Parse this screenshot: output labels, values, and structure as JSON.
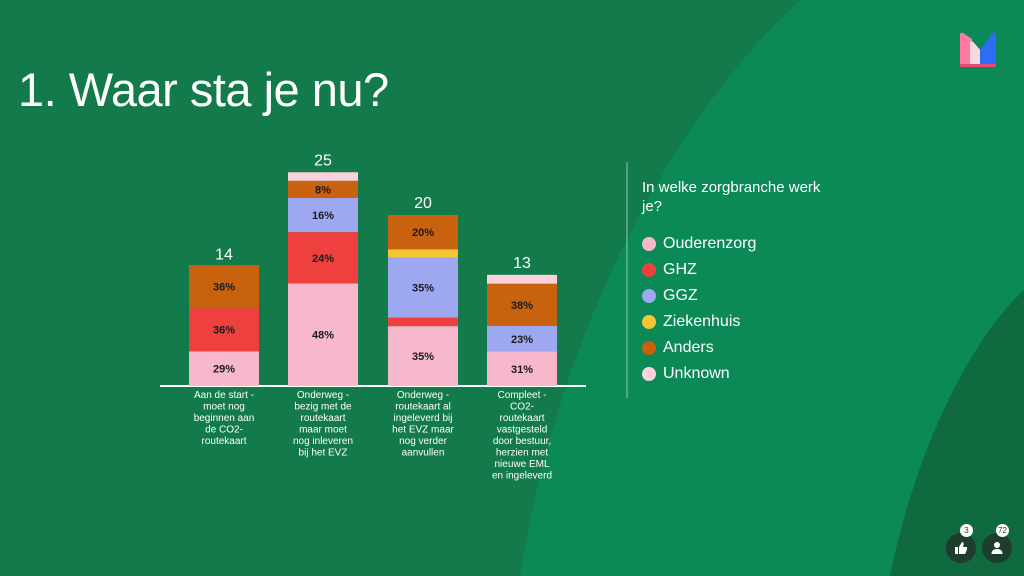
{
  "slide": {
    "title": "1. Waar sta je nu?"
  },
  "colors": {
    "background": "#137a4b",
    "background_light": "#0b8a57",
    "background_dark": "#0f6a3f"
  },
  "legend": {
    "title": "In welke zorgbranche werk je?",
    "items": [
      {
        "label": "Ouderenzorg",
        "color": "#f8b8cc"
      },
      {
        "label": "GHZ",
        "color": "#ef4040"
      },
      {
        "label": "GGZ",
        "color": "#9ea8f0"
      },
      {
        "label": "Ziekenhuis",
        "color": "#f4c534"
      },
      {
        "label": "Anders",
        "color": "#c8620e"
      },
      {
        "label": "Unknown",
        "color": "#fbd1dc"
      }
    ]
  },
  "chart_data": {
    "type": "bar",
    "stacked": true,
    "categories": [
      "Aan de start - moet nog beginnen aan de CO2-routekaart",
      "Onderweg - bezig met de routekaart maar moet nog inleveren bij het EVZ",
      "Onderweg - routekaart al ingeleverd bij het EVZ maar nog verder aanvullen",
      "Compleet - CO2-routekaart vastgesteld door bestuur, herzien met nieuwe EML en ingeleverd"
    ],
    "totals": [
      14,
      25,
      20,
      13
    ],
    "series": [
      {
        "name": "Ouderenzorg",
        "color": "#f8b8cc",
        "percentages": [
          29,
          48,
          35,
          31
        ],
        "labels": [
          "29%",
          "48%",
          "35%",
          "31%"
        ]
      },
      {
        "name": "GHZ",
        "color": "#ef4040",
        "percentages": [
          36,
          24,
          5,
          0
        ],
        "labels": [
          "36%",
          "24%",
          "",
          ""
        ]
      },
      {
        "name": "GGZ",
        "color": "#9ea8f0",
        "percentages": [
          0,
          16,
          35,
          23
        ],
        "labels": [
          "",
          "16%",
          "35%",
          "23%"
        ]
      },
      {
        "name": "Ziekenhuis",
        "color": "#f4c534",
        "percentages": [
          0,
          0,
          5,
          0
        ],
        "labels": [
          "",
          "",
          "",
          ""
        ]
      },
      {
        "name": "Anders",
        "color": "#c8620e",
        "percentages": [
          36,
          8,
          20,
          38
        ],
        "labels": [
          "36%",
          "8%",
          "20%",
          "38%"
        ]
      },
      {
        "name": "Unknown",
        "color": "#fbd1dc",
        "percentages": [
          0,
          4,
          0,
          8
        ],
        "labels": [
          "",
          "",
          "",
          ""
        ]
      }
    ]
  },
  "footer": {
    "likes_count": "3",
    "participants_count": "72",
    "like_icon": "thumbs-up-icon",
    "participants_icon": "person-icon"
  }
}
